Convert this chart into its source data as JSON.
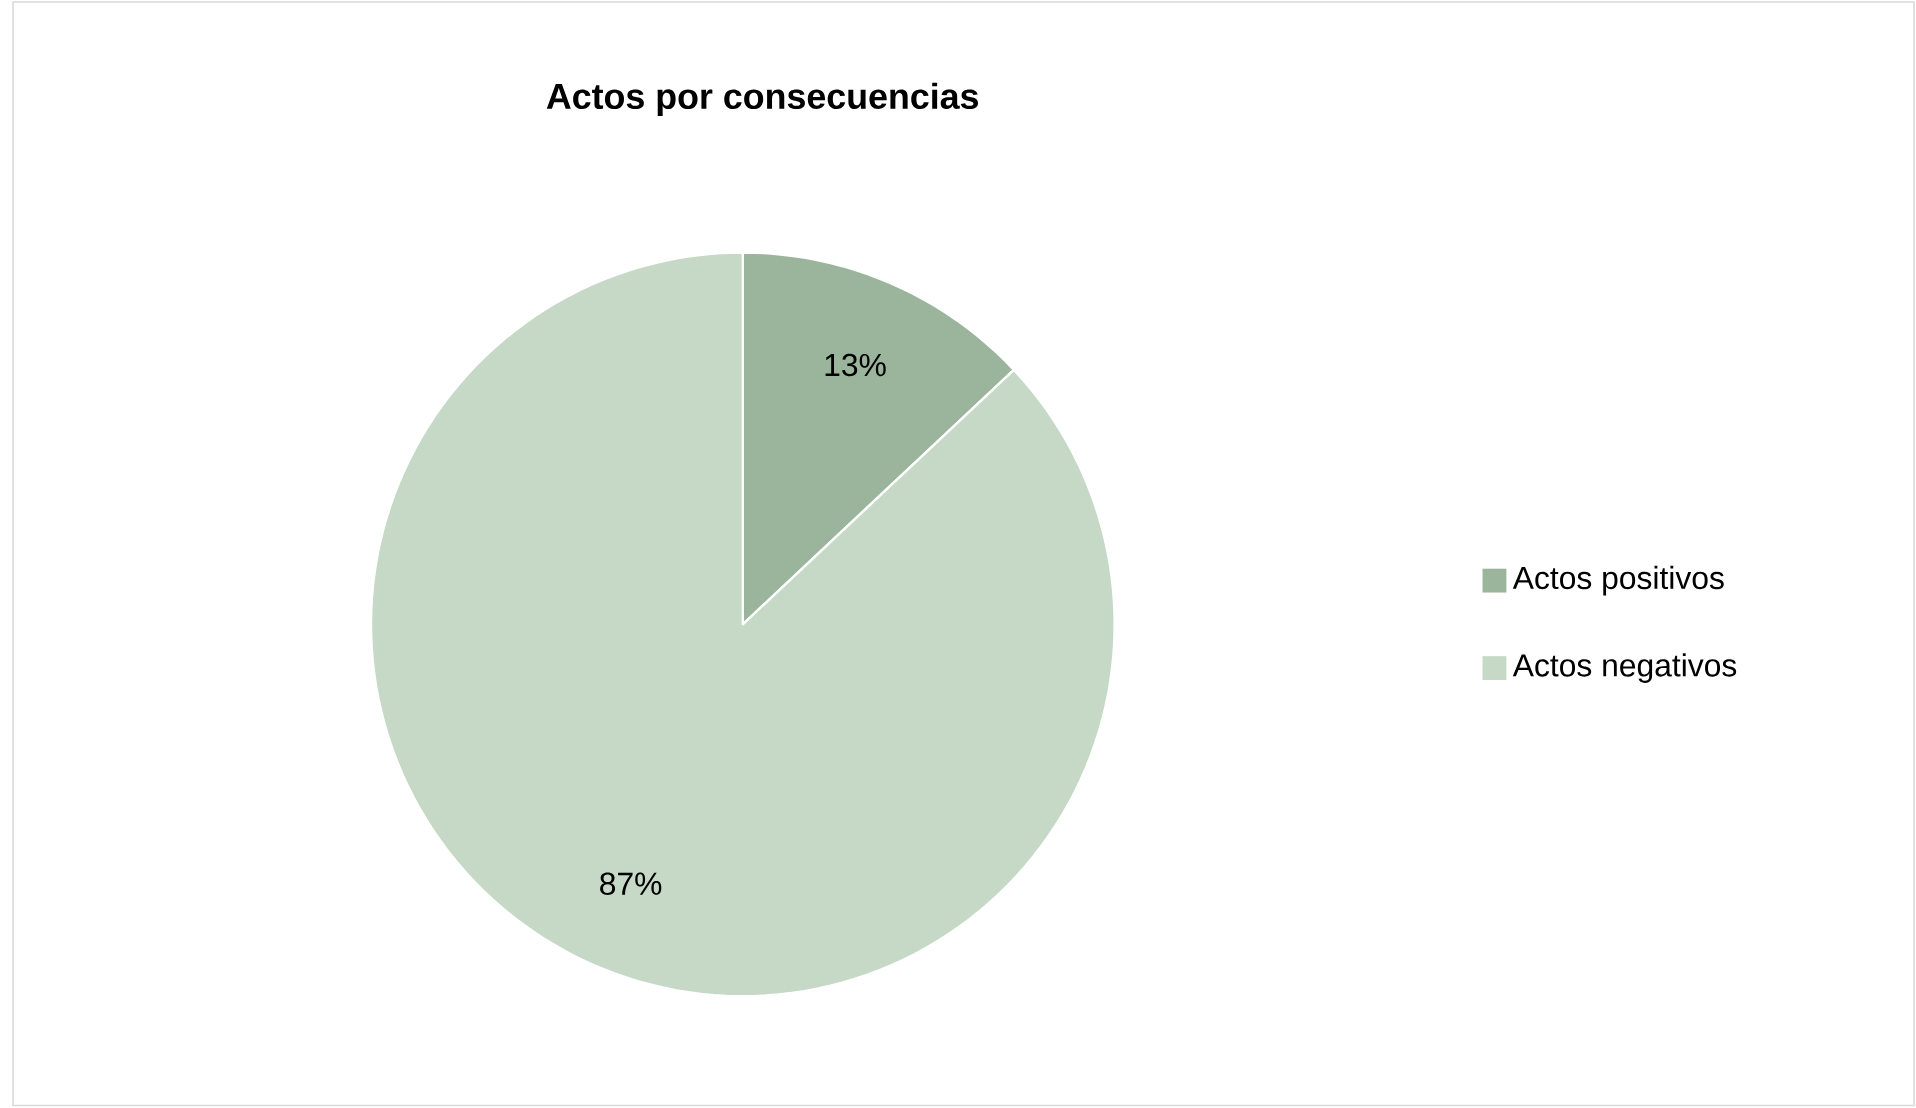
{
  "chart_data": {
    "type": "pie",
    "title": "Actos por consecuencias",
    "categories": [
      "Actos positivos",
      "Actos negativos"
    ],
    "values": [
      13,
      87
    ],
    "colors": [
      "#9bb59c",
      "#c5d9c6"
    ],
    "value_labels": [
      "13%",
      "87%"
    ],
    "legend": "right"
  }
}
